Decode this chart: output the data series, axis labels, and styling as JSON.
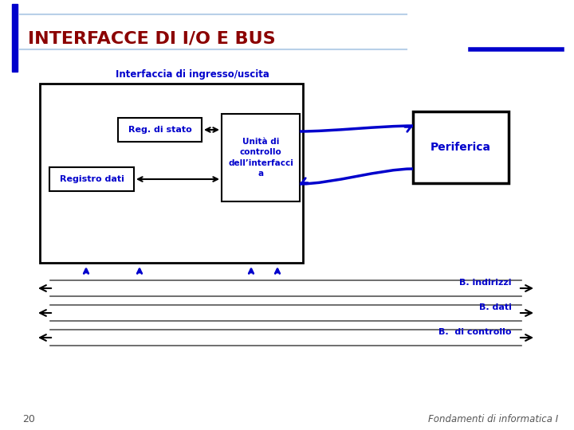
{
  "title": "INTERFACCE DI I/O E BUS",
  "title_color": "#8b0000",
  "title_fontsize": 16,
  "bg_color": "#ffffff",
  "slide_number": "20",
  "footer_right": "Fondamenti di informatica I",
  "footer_color": "#555555",
  "top_bar_color": "#0000cc",
  "top_line_color": "#b8d0e8",
  "accent_bar_color": "#0000cc",
  "box_main_label": "Interfaccia di ingresso/uscita",
  "box_stato_label": "Reg. di stato",
  "box_dati_label": "Registro dati",
  "box_unita_label": "Unità di\ncontrollo\ndell’interfacci\na",
  "box_periferica_label": "Periferica",
  "bus_labels": [
    "B. indirizzi",
    "B. dati",
    "B.  di controllo"
  ],
  "blue": "#0000cc",
  "dark_blue": "#000066"
}
